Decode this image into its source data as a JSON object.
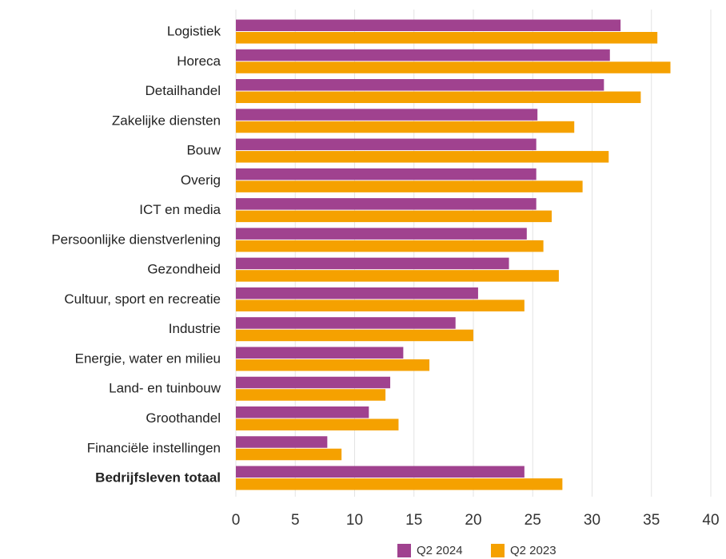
{
  "chart_data": {
    "type": "hbar",
    "categories": [
      "Logistiek",
      "Horeca",
      "Detailhandel",
      "Zakelijke diensten",
      "Bouw",
      "Overig",
      "ICT en media",
      "Persoonlijke dienstverlening",
      "Gezondheid",
      "Cultuur, sport en recreatie",
      "Industrie",
      "Energie, water en milieu",
      "Land- en tuinbouw",
      "Groothandel",
      "Financiële instellingen",
      "Bedrijfsleven totaal"
    ],
    "series": [
      {
        "name": "Q2 2024",
        "color": "#a0428f",
        "values": [
          32.4,
          31.5,
          31.0,
          25.4,
          25.3,
          25.3,
          25.3,
          24.5,
          23.0,
          20.4,
          18.5,
          14.1,
          13.0,
          11.2,
          7.7,
          24.3
        ]
      },
      {
        "name": "Q2 2023",
        "color": "#f5a100",
        "values": [
          35.5,
          36.6,
          34.1,
          28.5,
          31.4,
          29.2,
          26.6,
          25.9,
          27.2,
          24.3,
          20.0,
          16.3,
          12.6,
          13.7,
          8.9,
          27.5
        ]
      }
    ],
    "xlim": [
      0,
      40
    ],
    "xticks": [
      0,
      5,
      10,
      15,
      20,
      25,
      30,
      35,
      40
    ],
    "grid": true,
    "legend": "bottom"
  }
}
